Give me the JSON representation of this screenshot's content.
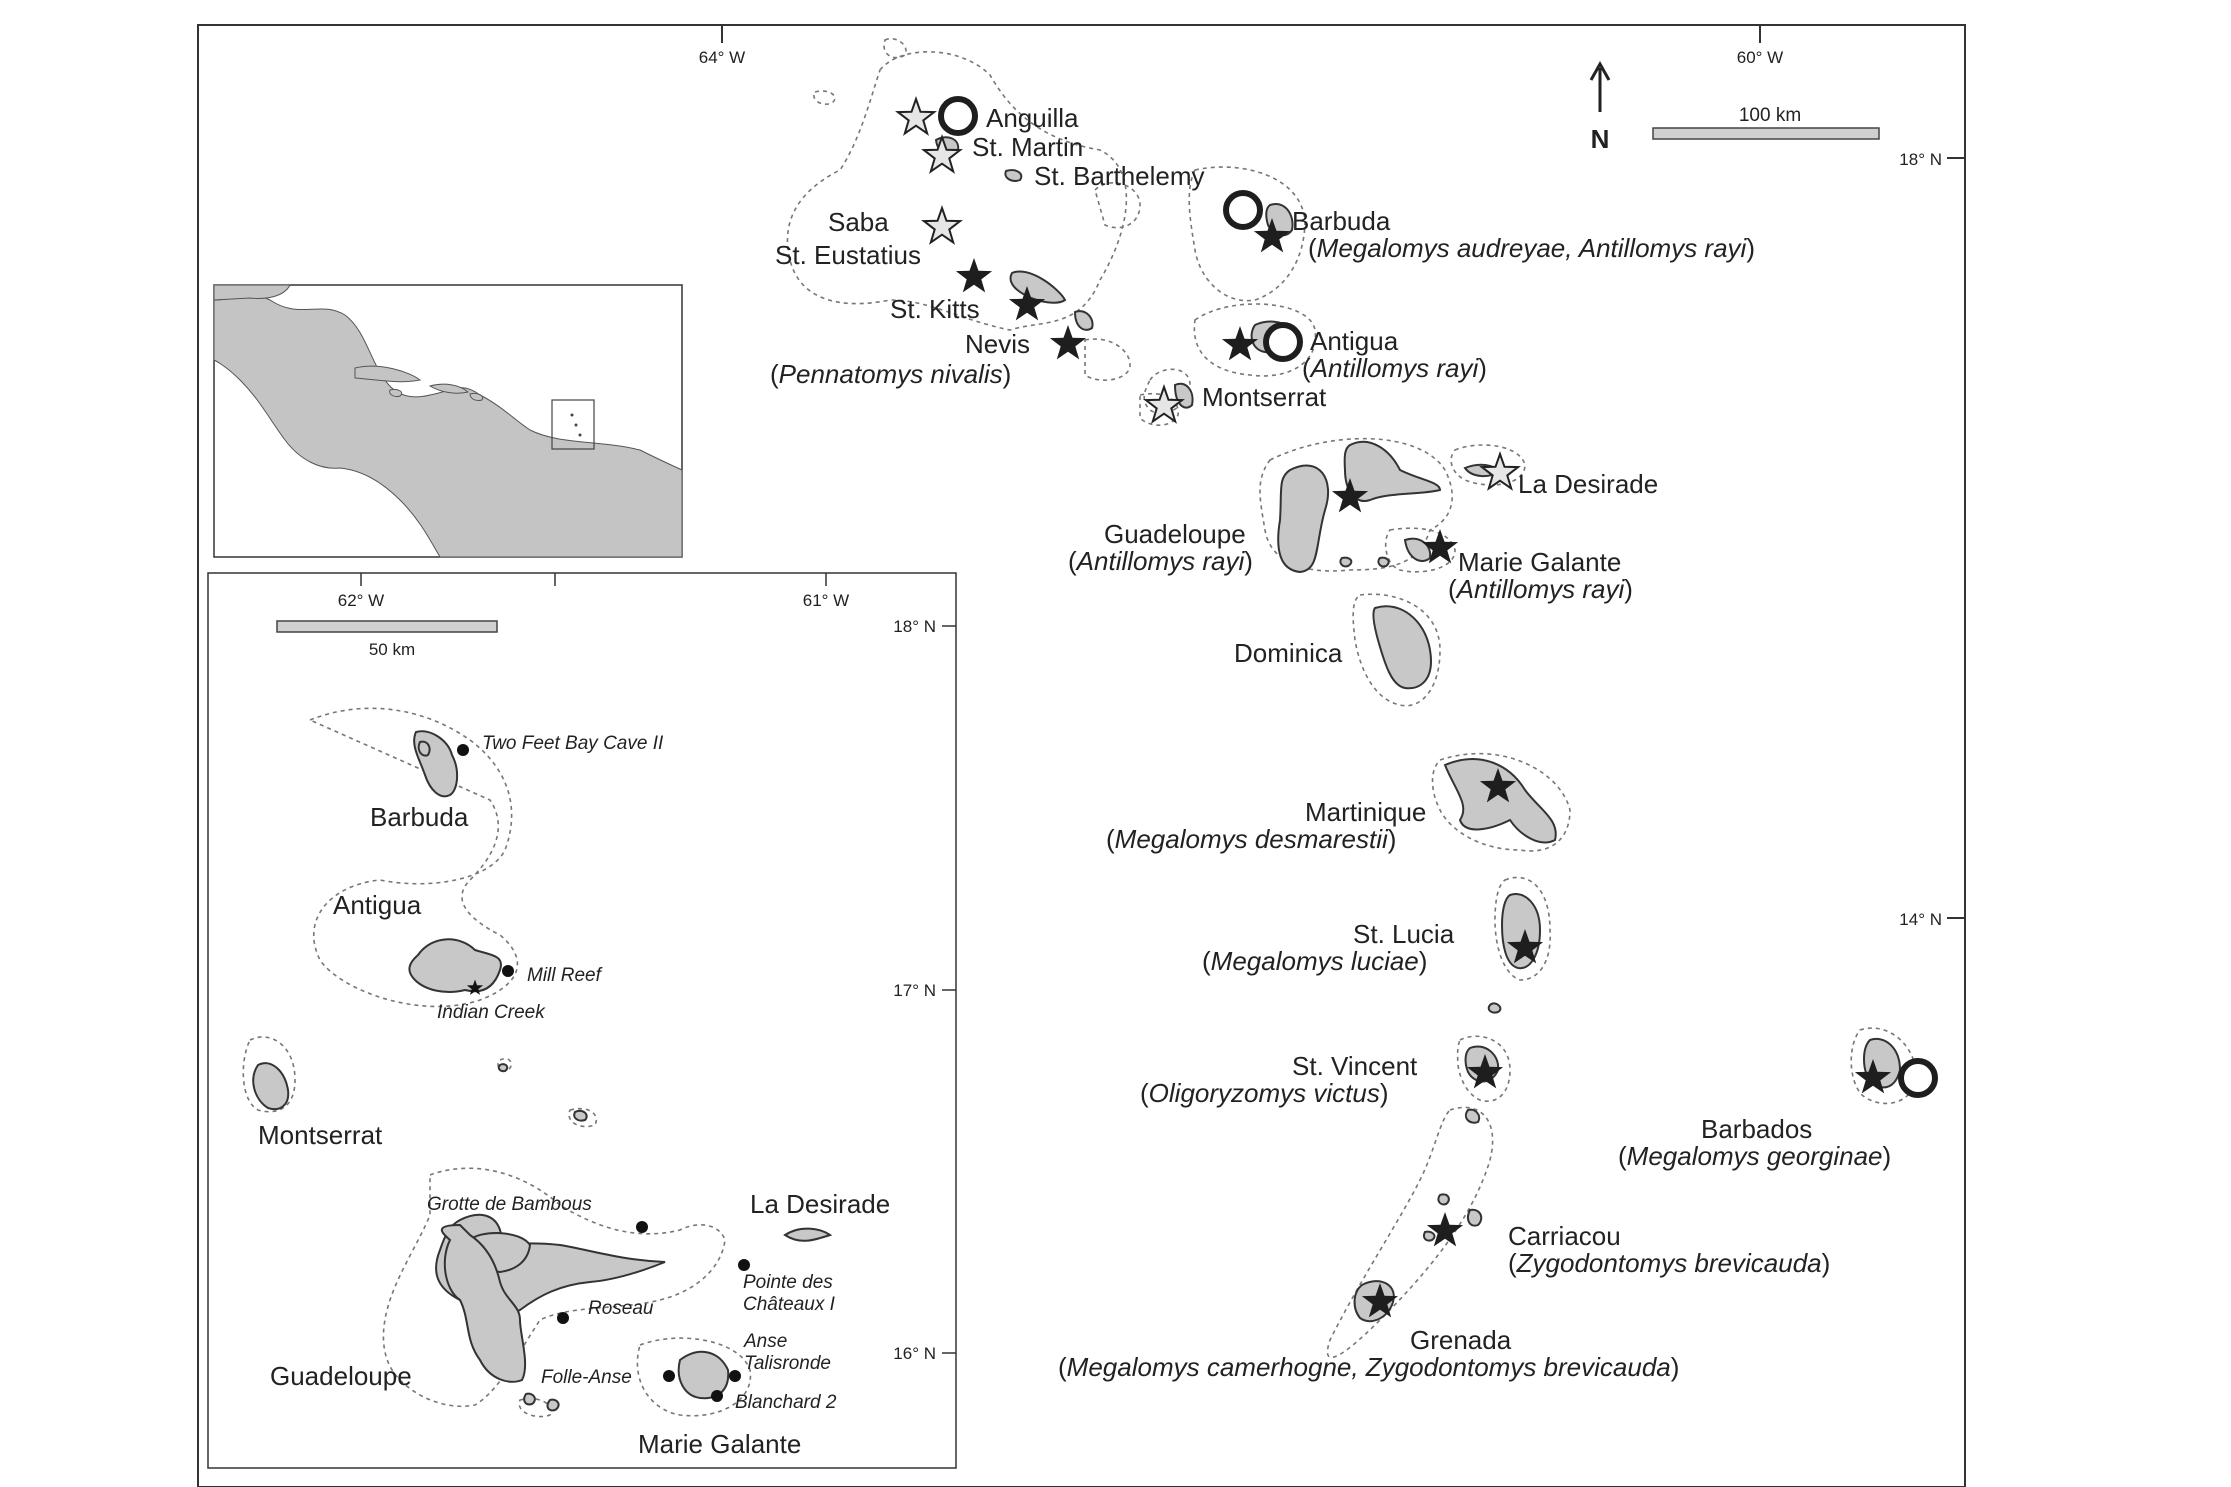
{
  "main_map": {
    "lon_ticks": [
      "64° W",
      "60° W"
    ],
    "lat_ticks": [
      "18° N",
      "14° N"
    ],
    "north_label": "N",
    "scale_label": "100 km",
    "labels": {
      "anguilla": "Anguilla",
      "st_martin": "St. Martin",
      "st_barthelemy": "St. Barthelemy",
      "saba": "Saba",
      "st_eustatius": "St. Eustatius",
      "st_kitts": "St. Kitts",
      "nevis": "Nevis",
      "nevis_species": "Pennatomys nivalis",
      "barbuda": "Barbuda",
      "barbuda_species": "Megalomys audreyae, Antillomys rayi",
      "antigua": "Antigua",
      "antigua_species": "Antillomys rayi",
      "montserrat": "Montserrat",
      "la_desirade": "La Desirade",
      "guadeloupe": "Guadeloupe",
      "guadeloupe_species": "Antillomys rayi",
      "marie_galante": "Marie Galante",
      "marie_galante_species": "Antillomys rayi",
      "dominica": "Dominica",
      "martinique": "Martinique",
      "martinique_species": "Megalomys desmarestii",
      "st_lucia": "St. Lucia",
      "st_lucia_species": "Megalomys luciae",
      "st_vincent": "St. Vincent",
      "st_vincent_species": "Oligoryzomys victus",
      "barbados": "Barbados",
      "barbados_species": "Megalomys georginae",
      "carriacou": "Carriacou",
      "carriacou_species": "Zygodontomys brevicauda",
      "grenada": "Grenada",
      "grenada_species": "Megalomys camerhogne, Zygodontomys brevicauda"
    },
    "colors": {
      "land": "#c8c8c8",
      "star_dark": "#1e1e1e",
      "star_light": "#e6e6e6"
    }
  },
  "inset": {
    "lon_ticks": [
      "62° W",
      "61° W"
    ],
    "lat_ticks": [
      "18° N",
      "17° N",
      "16° N"
    ],
    "scale_label": "50 km",
    "islands": {
      "barbuda": "Barbuda",
      "antigua": "Antigua",
      "montserrat": "Montserrat",
      "la_desirade": "La Desirade",
      "guadeloupe": "Guadeloupe",
      "marie_galante": "Marie Galante"
    },
    "sites": {
      "two_feet_bay": "Two Feet Bay Cave II",
      "mill_reef": "Mill Reef",
      "indian_creek": "Indian Creek",
      "grotte_bambous": "Grotte de Bambous",
      "pointe_1": "Pointe des",
      "pointe_2": "Châteaux I",
      "roseau": "Roseau",
      "anse_1": "Anse",
      "anse_2": "Talisronde",
      "folle_anse": "Folle-Anse",
      "blanchard": "Blanchard 2"
    }
  }
}
